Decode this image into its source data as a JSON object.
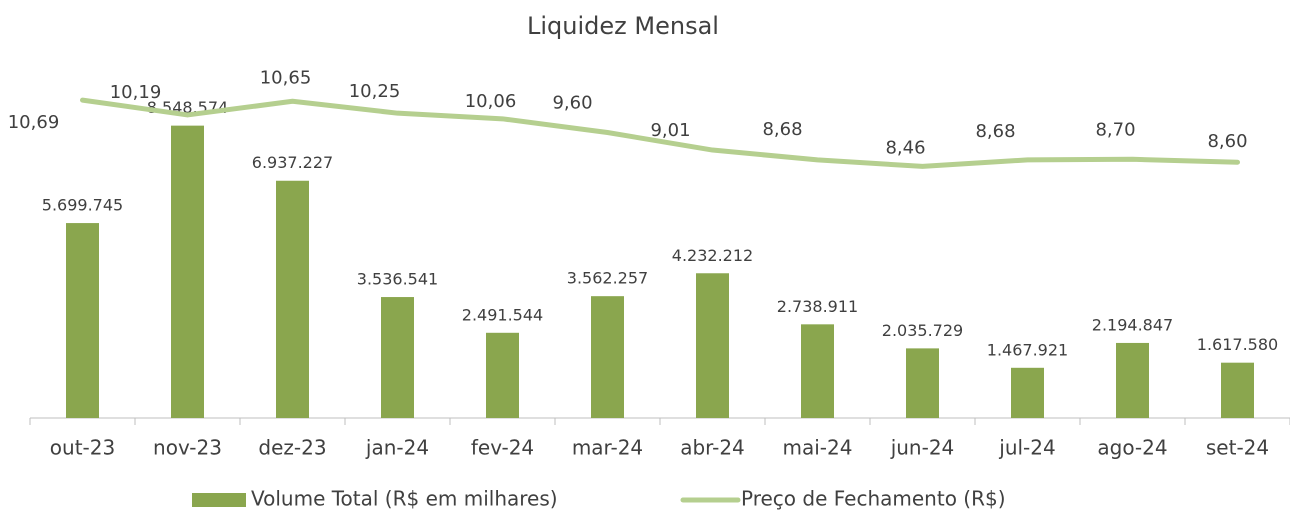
{
  "chart_data": {
    "type": "bar_line",
    "title": "Liquidez Mensal",
    "categories": [
      "out-23",
      "nov-23",
      "dez-23",
      "jan-24",
      "fev-24",
      "mar-24",
      "abr-24",
      "mai-24",
      "jun-24",
      "jul-24",
      "ago-24",
      "set-24"
    ],
    "series": [
      {
        "name": "Volume Total (R$ em milhares)",
        "type": "bar",
        "color": "#8aa64e",
        "values": [
          5699745,
          8548574,
          6937227,
          3536541,
          2491544,
          3562257,
          4232212,
          2738911,
          2035729,
          1467921,
          2194847,
          1617580
        ],
        "value_labels": [
          "5.699.745",
          "8.548.574",
          "6.937.227",
          "3.536.541",
          "2.491.544",
          "3.562.257",
          "4.232.212",
          "2.738.911",
          "2.035.729",
          "1.467.921",
          "2.194.847",
          "1.617.580"
        ]
      },
      {
        "name": "Preço de Fechamento (R$)",
        "type": "line",
        "axis": "y2",
        "color": "#b5cf8f",
        "values": [
          10.69,
          10.19,
          10.65,
          10.25,
          10.06,
          9.6,
          9.01,
          8.68,
          8.46,
          8.68,
          8.7,
          8.6
        ],
        "value_labels": [
          "10,69",
          "10,19",
          "10,65",
          "10,25",
          "10,06",
          "9,60",
          "9,01",
          "8,68",
          "8,46",
          "8,68",
          "8,70",
          "8,60"
        ]
      }
    ],
    "ylim": [
      0,
      10000000
    ],
    "y2lim": [
      0,
      11.5
    ],
    "legend": "bottom"
  }
}
